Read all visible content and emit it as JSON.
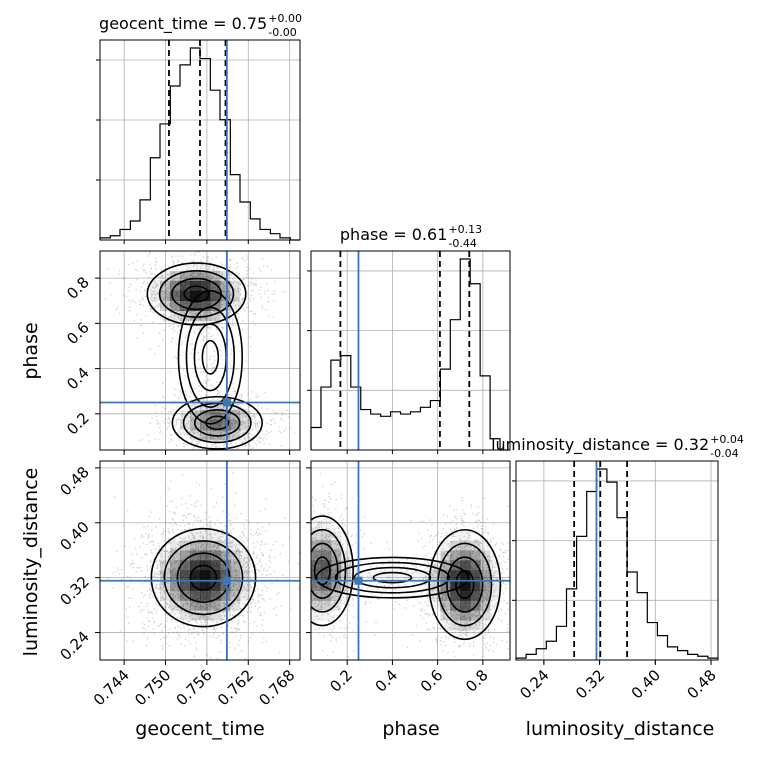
{
  "chart_data": {
    "type": "corner",
    "parameters": [
      {
        "name": "geocent_time",
        "label": "geocent_time",
        "median": "0.75",
        "plus": "+0.00",
        "minus": "-0.00",
        "range": [
          0.7405,
          0.7695
        ],
        "ticks": [
          0.744,
          0.75,
          0.756,
          0.762,
          0.768
        ],
        "tick_labels": [
          "0.744",
          "0.750",
          "0.756",
          "0.762",
          "0.768"
        ],
        "quantiles": [
          0.7505,
          0.755,
          0.7587
        ],
        "truth": 0.7589
      },
      {
        "name": "phase",
        "label": "phase",
        "median": "0.61",
        "plus": "+0.13",
        "minus": "-0.44",
        "range": [
          0.04,
          0.92
        ],
        "ticks": [
          0.2,
          0.4,
          0.6,
          0.8
        ],
        "tick_labels": [
          "0.2",
          "0.4",
          "0.6",
          "0.8"
        ],
        "quantiles": [
          0.17,
          0.61,
          0.74
        ],
        "truth": 0.25
      },
      {
        "name": "luminosity_distance",
        "label": "luminosity_distance",
        "median": "0.32",
        "plus": "+0.04",
        "minus": "-0.04",
        "range": [
          0.2,
          0.49
        ],
        "ticks": [
          0.24,
          0.32,
          0.4,
          0.48
        ],
        "tick_labels": [
          "0.24",
          "0.32",
          "0.40",
          "0.48"
        ],
        "quantiles": [
          0.2835,
          0.321,
          0.3595
        ],
        "truth": 0.3155
      }
    ],
    "histograms": {
      "geocent_time": {
        "bin_edges": [
          0.7405,
          0.742,
          0.7434,
          0.7449,
          0.7463,
          0.7478,
          0.7492,
          0.7507,
          0.7521,
          0.7536,
          0.755,
          0.7565,
          0.7579,
          0.7594,
          0.7608,
          0.7623,
          0.7637,
          0.7652,
          0.7666,
          0.7681,
          0.7695
        ],
        "counts": [
          1,
          2,
          5,
          9,
          19,
          39,
          55,
          73,
          83,
          91,
          86,
          71,
          57,
          31,
          18,
          10,
          5,
          3,
          1,
          0
        ]
      },
      "phase": {
        "bin_edges": [
          0.04,
          0.084,
          0.128,
          0.172,
          0.216,
          0.26,
          0.304,
          0.348,
          0.392,
          0.436,
          0.48,
          0.524,
          0.568,
          0.612,
          0.656,
          0.7,
          0.744,
          0.788,
          0.832,
          0.876,
          0.92
        ],
        "counts": [
          10,
          28,
          40,
          42,
          28,
          18,
          16,
          15,
          17,
          16,
          17,
          19,
          22,
          36,
          58,
          85,
          74,
          33,
          5,
          0
        ]
      },
      "luminosity_distance": {
        "bin_edges": [
          0.2,
          0.2145,
          0.229,
          0.2435,
          0.258,
          0.2725,
          0.287,
          0.3015,
          0.316,
          0.3305,
          0.345,
          0.3595,
          0.374,
          0.3885,
          0.403,
          0.4175,
          0.432,
          0.4465,
          0.461,
          0.4755,
          0.49
        ],
        "counts": [
          1,
          3,
          6,
          10,
          18,
          38,
          66,
          90,
          102,
          95,
          76,
          47,
          36,
          20,
          13,
          7,
          5,
          3,
          2,
          1
        ]
      }
    },
    "density_modes": {
      "geocent_time_vs_phase": [
        [
          0.7545,
          0.73
        ],
        [
          0.7575,
          0.16
        ]
      ],
      "geocent_time_vs_luminosity_distance": [
        [
          0.7555,
          0.32
        ]
      ],
      "phase_vs_luminosity_distance": [
        [
          0.09,
          0.33
        ],
        [
          0.72,
          0.31
        ]
      ]
    },
    "colors": {
      "truth": "#3d76b3",
      "hist": "#000000",
      "density": "#000000"
    }
  }
}
